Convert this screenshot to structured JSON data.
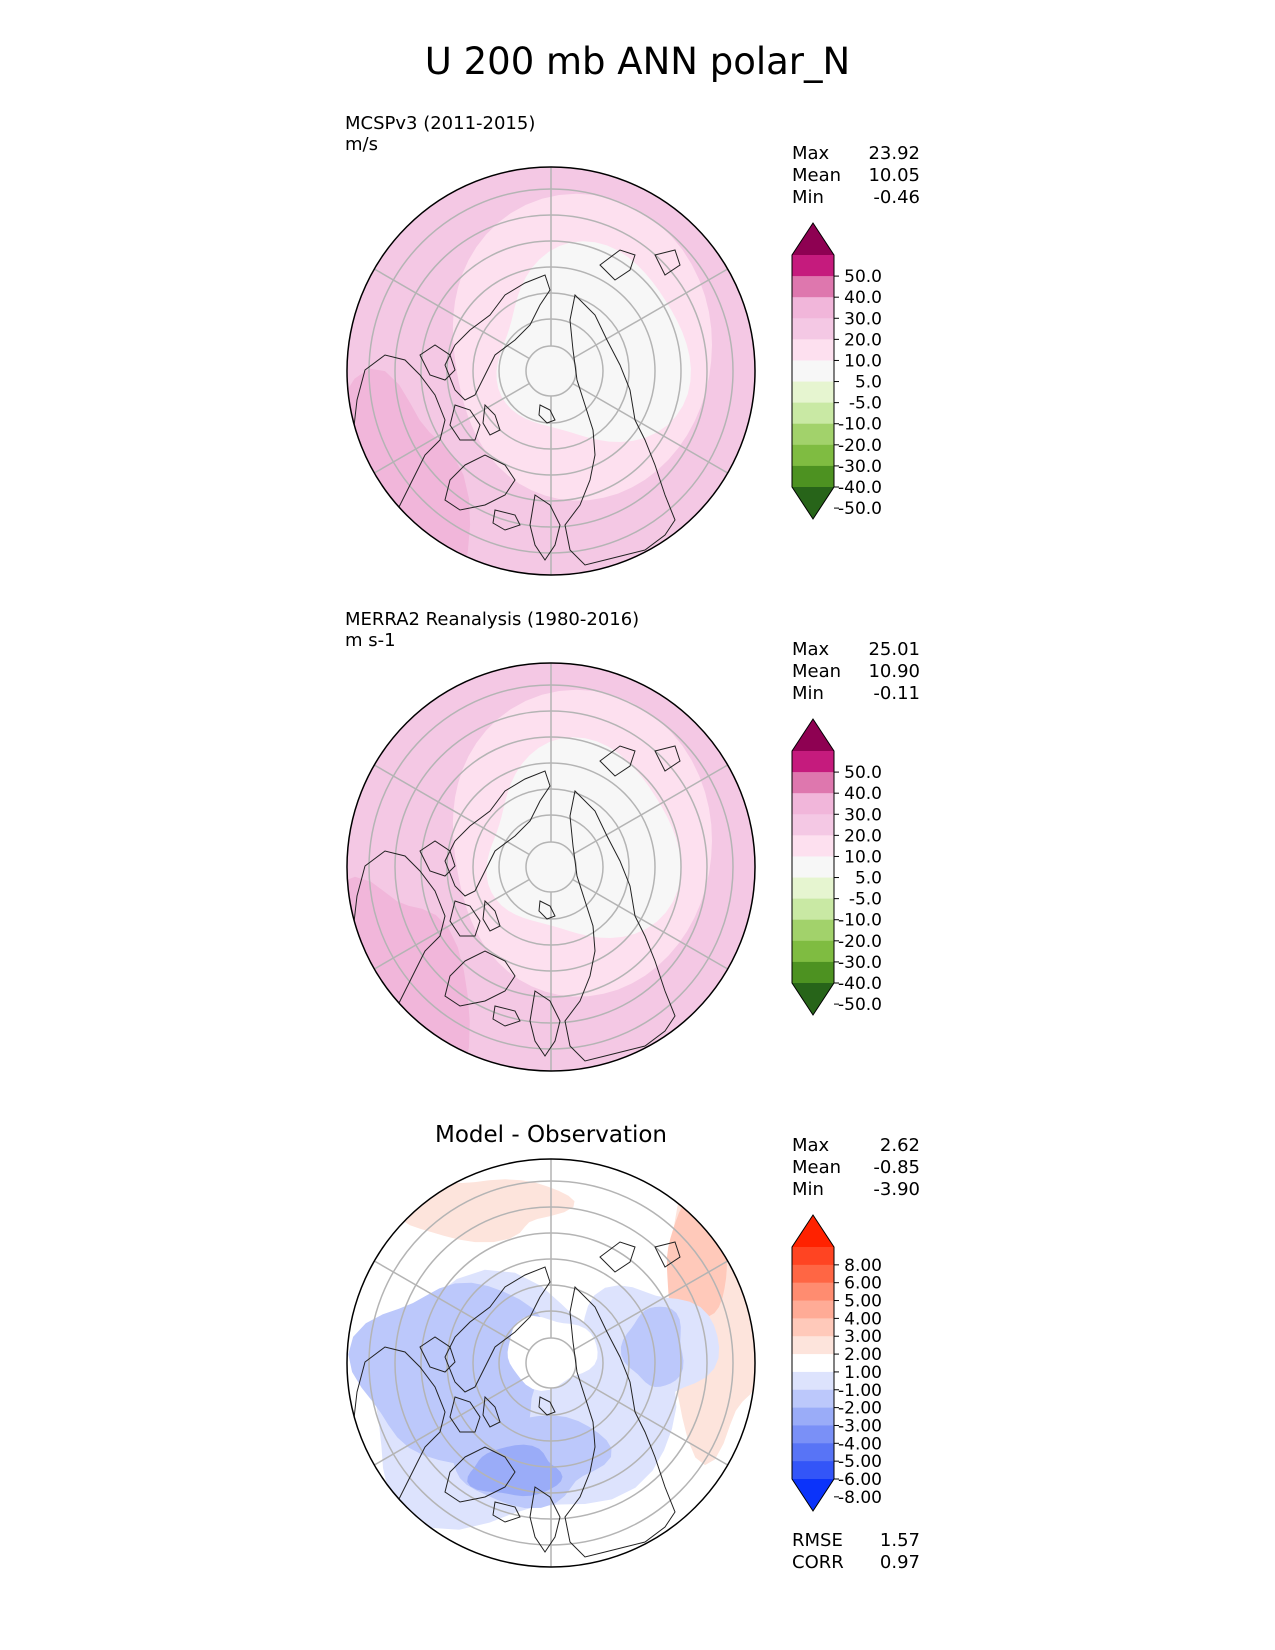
{
  "title": "U 200 mb ANN polar_N",
  "chart_data": [
    {
      "type": "heatmap",
      "projection": "polar_N",
      "title": "MCSPv3 (2011-2015)",
      "units": "m/s",
      "stats": [
        {
          "label": "Max",
          "value": "23.92"
        },
        {
          "label": "Mean",
          "value": "10.05"
        },
        {
          "label": "Min",
          "value": "-0.46"
        }
      ],
      "colorbar": {
        "levels": [
          "50.0",
          "40.0",
          "30.0",
          "20.0",
          "10.0",
          "5.0",
          "-5.0",
          "-10.0",
          "-20.0",
          "-30.0",
          "-40.0",
          "-50.0"
        ],
        "colors": [
          "#8e0152",
          "#c51b7d",
          "#de77ae",
          "#f1b6da",
          "#f4c8e4",
          "#fde0ef",
          "#f7f7f7",
          "#e6f5d0",
          "#c9e9a4",
          "#a2d26b",
          "#7fbc41",
          "#4d9221",
          "#276419"
        ],
        "extend": "both"
      }
    },
    {
      "type": "heatmap",
      "projection": "polar_N",
      "title": "MERRA2 Reanalysis (1980-2016)",
      "units": "m s-1",
      "stats": [
        {
          "label": "Max",
          "value": "25.01"
        },
        {
          "label": "Mean",
          "value": "10.90"
        },
        {
          "label": "Min",
          "value": "-0.11"
        }
      ],
      "colorbar": {
        "levels": [
          "50.0",
          "40.0",
          "30.0",
          "20.0",
          "10.0",
          "5.0",
          "-5.0",
          "-10.0",
          "-20.0",
          "-30.0",
          "-40.0",
          "-50.0"
        ],
        "colors": [
          "#8e0152",
          "#c51b7d",
          "#de77ae",
          "#f1b6da",
          "#f4c8e4",
          "#fde0ef",
          "#f7f7f7",
          "#e6f5d0",
          "#c9e9a4",
          "#a2d26b",
          "#7fbc41",
          "#4d9221",
          "#276419"
        ],
        "extend": "both"
      }
    },
    {
      "type": "heatmap",
      "projection": "polar_N",
      "title": "Model - Observation",
      "stats": [
        {
          "label": "Max",
          "value": "2.62"
        },
        {
          "label": "Mean",
          "value": "-0.85"
        },
        {
          "label": "Min",
          "value": "-3.90"
        }
      ],
      "metrics": [
        {
          "label": "RMSE",
          "value": "1.57"
        },
        {
          "label": "CORR",
          "value": "0.97"
        }
      ],
      "colorbar": {
        "levels": [
          "8.00",
          "6.00",
          "5.00",
          "4.00",
          "3.00",
          "2.00",
          "1.00",
          "-1.00",
          "-2.00",
          "-3.00",
          "-4.00",
          "-5.00",
          "-6.00",
          "-8.00"
        ],
        "colors": [
          "#ff2200",
          "#ff4422",
          "#ff6644",
          "#ff8c70",
          "#ffab96",
          "#ffc9ba",
          "#fde4dc",
          "#ffffff",
          "#dde3fd",
          "#bcc8fb",
          "#9aacf8",
          "#7a90f7",
          "#5874f6",
          "#3355f8",
          "#0b33fa"
        ],
        "extend": "both"
      }
    }
  ]
}
